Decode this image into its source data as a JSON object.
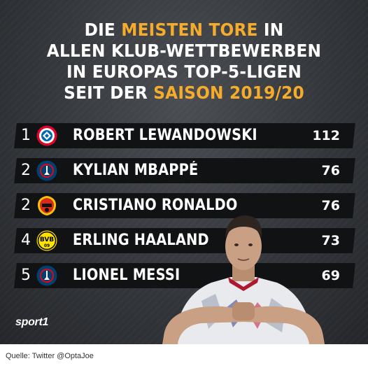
{
  "title": {
    "line1_pre": "DIE ",
    "line1_hl": "MEISTEN TORE",
    "line1_post": " IN",
    "line2": "ALLEN KLUB-WETTBEWERBEN",
    "line3": "IN EUROPAS TOP-5-LIGEN",
    "line4_pre": "SEIT DER ",
    "line4_hl": "SAISON 2019/20"
  },
  "colors": {
    "highlight": "#f5ab2b",
    "row_bg": "#111214",
    "text": "#ffffff"
  },
  "ranking": [
    {
      "rank": "1",
      "club_icon": "bayern-munich-crest-icon",
      "name": "ROBERT LEWANDOWSKI",
      "goals": "112"
    },
    {
      "rank": "2",
      "club_icon": "psg-crest-icon",
      "name": "KYLIAN MBAPPÉ",
      "goals": "76"
    },
    {
      "rank": "2",
      "club_icon": "manchester-united-crest-icon",
      "name": "CRISTIANO RONALDO",
      "goals": "76"
    },
    {
      "rank": "4",
      "club_icon": "bvb-dortmund-crest-icon",
      "name": "ERLING HAALAND",
      "goals": "73"
    },
    {
      "rank": "5",
      "club_icon": "psg-crest-icon",
      "name": "LIONEL MESSI",
      "goals": "69"
    }
  ],
  "logo_text": "sport1",
  "source": "Quelle: Twitter @OptaJoe"
}
